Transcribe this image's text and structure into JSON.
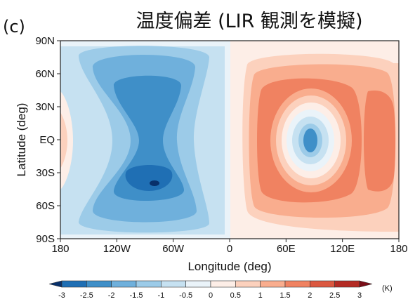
{
  "panel_label": "(c)",
  "chart_data": {
    "type": "heatmap",
    "title": "温度偏差 (LIR 観測を模擬)",
    "xlabel": "Longitude (deg)",
    "ylabel": "Latitude (deg)",
    "xlim": [
      -180,
      180
    ],
    "ylim": [
      -90,
      90
    ],
    "x_ticks": [
      {
        "value": -180,
        "label": "180"
      },
      {
        "value": -120,
        "label": "120W"
      },
      {
        "value": -60,
        "label": "60W"
      },
      {
        "value": 0,
        "label": "0"
      },
      {
        "value": 60,
        "label": "60E"
      },
      {
        "value": 120,
        "label": "120E"
      },
      {
        "value": 180,
        "label": "180"
      }
    ],
    "y_ticks": [
      {
        "value": 90,
        "label": "90N"
      },
      {
        "value": 60,
        "label": "60N"
      },
      {
        "value": 30,
        "label": "30N"
      },
      {
        "value": 0,
        "label": "EQ"
      },
      {
        "value": -30,
        "label": "30S"
      },
      {
        "value": -60,
        "label": "60S"
      },
      {
        "value": -90,
        "label": "90S"
      }
    ],
    "colorbar": {
      "unit": "(K)",
      "levels": [
        -3,
        -2.5,
        -2,
        -1.5,
        -1,
        -0.5,
        0,
        0.5,
        1,
        1.5,
        2,
        2.5,
        3
      ],
      "labels": [
        "-3",
        "-2.5",
        "-2",
        "-1.5",
        "-1",
        "-0.5",
        "0",
        "0.5",
        "1",
        "1.5",
        "2",
        "2.5",
        "3"
      ],
      "colors": [
        "#08306b",
        "#1f6fb4",
        "#3f8fc8",
        "#6fb0dc",
        "#9ccbe8",
        "#c6e1f1",
        "#eaf3f9",
        "#fdeee7",
        "#fcd1bd",
        "#f9ad8e",
        "#f08261",
        "#db5840",
        "#b42b24",
        "#7a0d17"
      ]
    },
    "features": [
      {
        "name": "cold anomaly center",
        "lon": -80,
        "lat": -45,
        "value": -2.5
      },
      {
        "name": "cold anomaly band",
        "lon": -80,
        "lat": 0,
        "value": -2.0
      },
      {
        "name": "warm anomaly ring",
        "lon": 85,
        "lat": 0,
        "value": 1.5
      },
      {
        "name": "local cold core in warm ring",
        "lon": 87,
        "lat": 0,
        "value": -1.5
      }
    ]
  }
}
